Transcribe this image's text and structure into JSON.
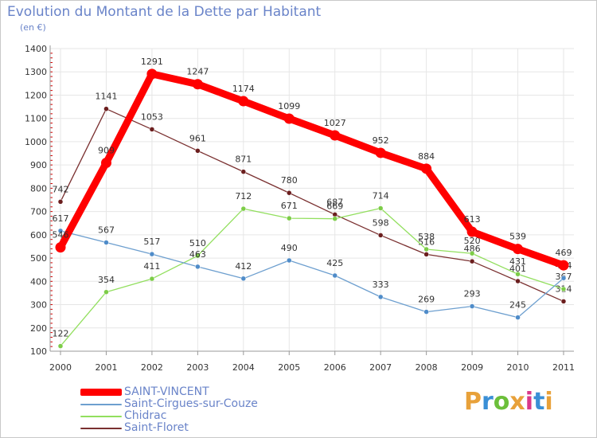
{
  "title": "Evolution du Montant de la Dette par Habitant",
  "unit_label": "(en €)",
  "logo_text": "Proxiti",
  "chart_data": {
    "type": "line",
    "title": "Evolution du Montant de la Dette par Habitant",
    "ylabel": "(en €)",
    "xlabel": "",
    "x": [
      "2000",
      "2001",
      "2002",
      "2003",
      "2004",
      "2005",
      "2006",
      "2007",
      "2008",
      "2009",
      "2010",
      "2011"
    ],
    "ylim": [
      100,
      1400
    ],
    "yticks": [
      100,
      200,
      300,
      400,
      500,
      600,
      700,
      800,
      900,
      1000,
      1100,
      1200,
      1300,
      1400
    ],
    "grid": true,
    "legend_position": "bottom-left",
    "series": [
      {
        "name": "SAINT-VINCENT",
        "color": "#ff0000",
        "values": [
          546,
          909,
          1291,
          1247,
          1174,
          1099,
          1027,
          952,
          884,
          613,
          539,
          469
        ]
      },
      {
        "name": "Saint-Cirgues-sur-Couze",
        "color": "#6d9fcf",
        "marker": "#4f8cc9",
        "values": [
          617,
          567,
          517,
          463,
          412,
          490,
          425,
          333,
          269,
          293,
          245,
          414
        ]
      },
      {
        "name": "Chidrac",
        "color": "#92df5e",
        "marker": "#7ccc47",
        "values": [
          122,
          354,
          411,
          510,
          712,
          671,
          669,
          714,
          538,
          520,
          431,
          367
        ]
      },
      {
        "name": "Saint-Floret",
        "color": "#7a3030",
        "marker": "#6b1e1e",
        "values": [
          742,
          1141,
          1053,
          961,
          871,
          780,
          687,
          598,
          516,
          486,
          401,
          314
        ]
      }
    ]
  }
}
